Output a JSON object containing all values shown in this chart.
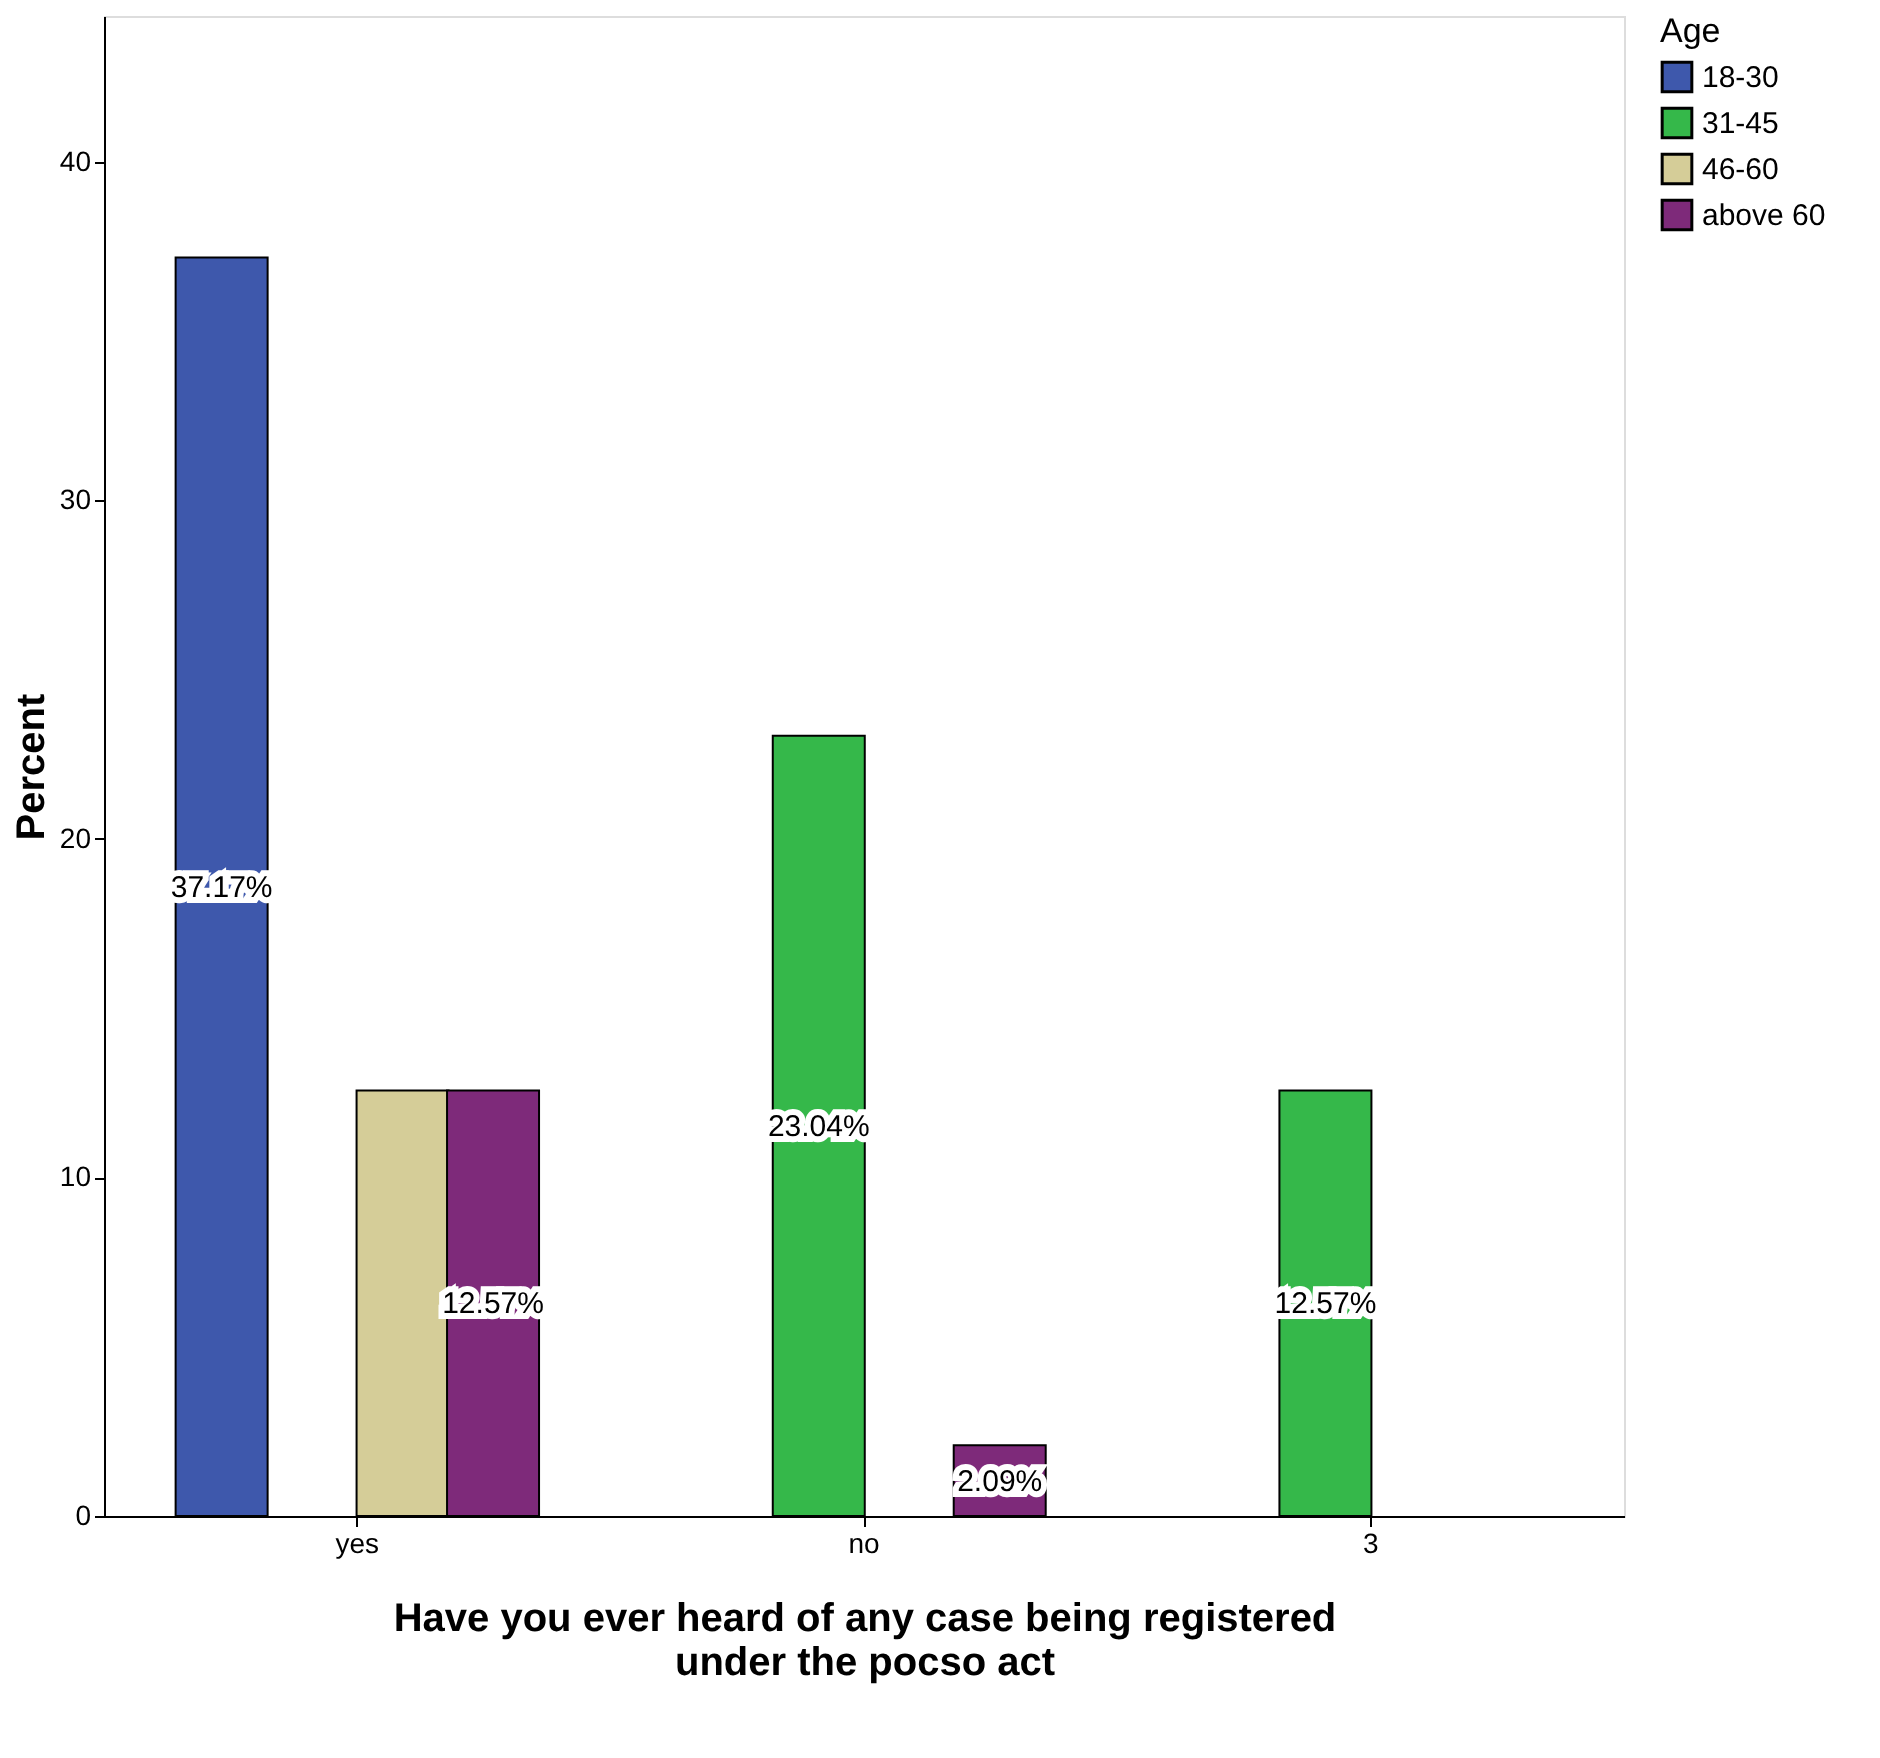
{
  "chart_data": {
    "type": "bar",
    "xlabel": "Have you ever heard of any case being registered\nunder the pocso act",
    "ylabel": "Percent",
    "legend_title": "Age",
    "categories": [
      "yes",
      "no",
      "3"
    ],
    "series": [
      {
        "name": "18-30",
        "color": "#3e58ac",
        "values": [
          37.17,
          null,
          null
        ],
        "value_labels": [
          "37.17%",
          null,
          null
        ]
      },
      {
        "name": "31-45",
        "color": "#35b84a",
        "values": [
          null,
          23.04,
          12.57
        ],
        "value_labels": [
          null,
          "23.04%",
          "12.57%"
        ]
      },
      {
        "name": "46-60",
        "color": "#d5cd98",
        "values": [
          12.57,
          null,
          null
        ],
        "value_labels": [
          null,
          null,
          null
        ]
      },
      {
        "name": "above 60",
        "color": "#7e2a7a",
        "values": [
          12.57,
          2.09,
          null
        ],
        "value_labels": [
          "12.57%",
          "2.09%",
          null
        ]
      }
    ],
    "ylim": [
      0,
      44.3
    ],
    "yticks": [
      0,
      10,
      20,
      30,
      40
    ],
    "grid": false,
    "legend": "top right"
  }
}
